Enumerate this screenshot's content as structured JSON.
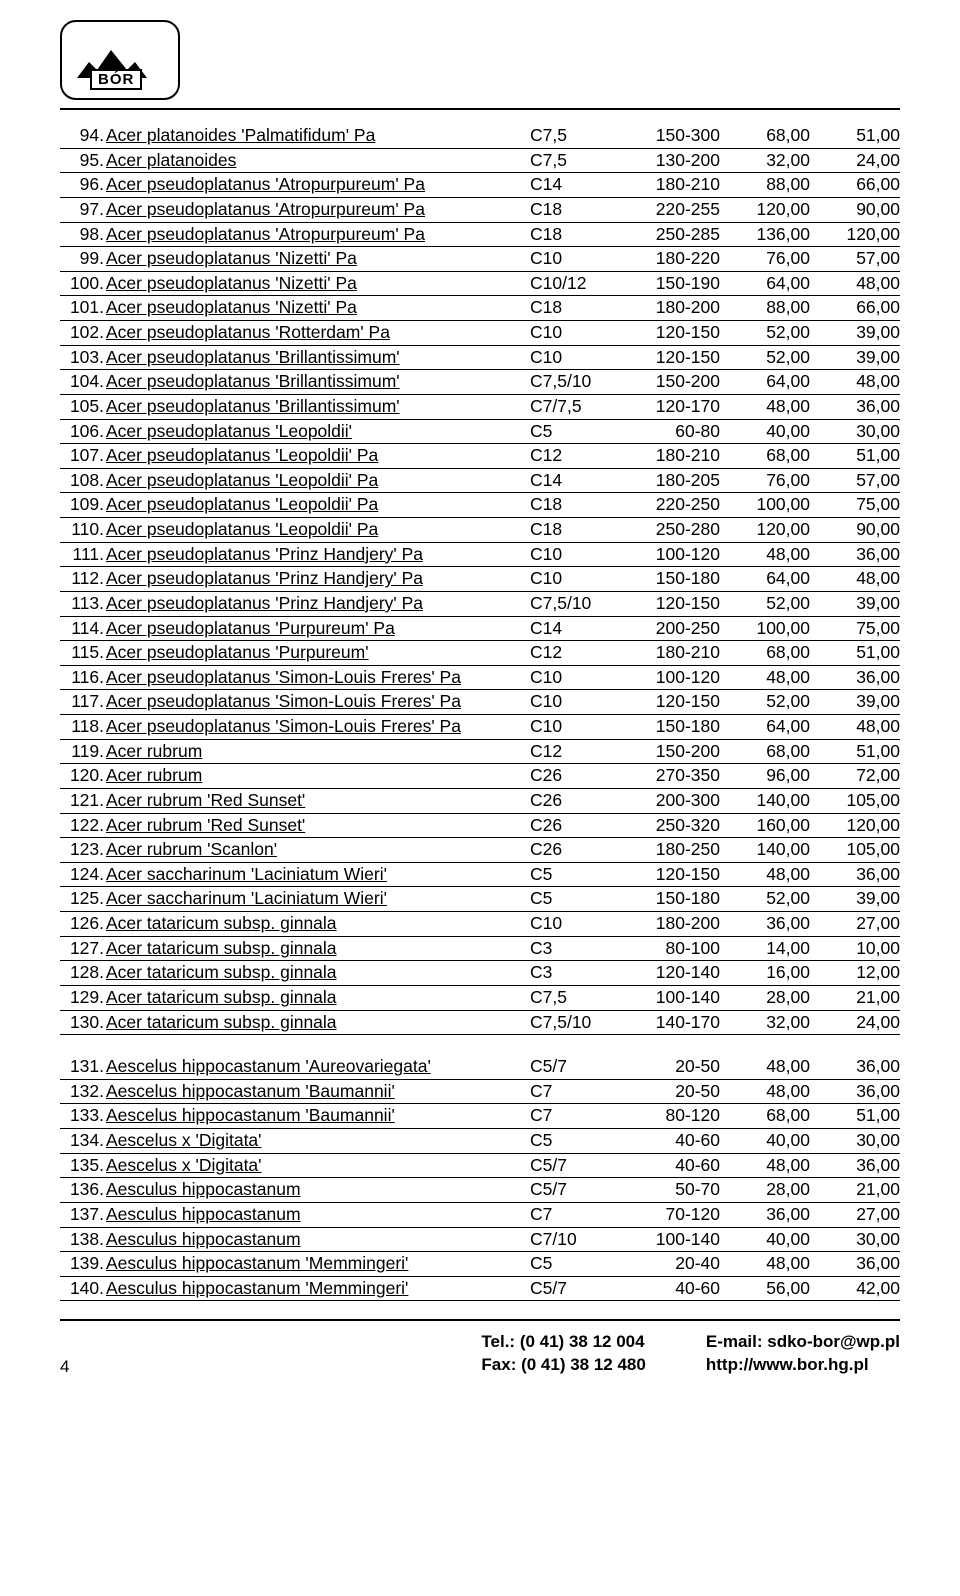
{
  "logo_text": "BÓR",
  "page_number": "4",
  "footer": {
    "tel_label": "Tel.: (0 41) 38 12 004",
    "fax_label": "Fax: (0 41) 38 12 480",
    "email_label": "E-mail: sdko-bor@wp.pl",
    "web_label": "http://www.bor.hg.pl"
  },
  "rows": [
    {
      "n": "94.",
      "name": "Acer platanoides 'Palmatifidum' Pa",
      "c2": "C7,5",
      "c3": "150-300",
      "c4": "68,00",
      "c5": "51,00"
    },
    {
      "n": "95.",
      "name": "Acer platanoides",
      "c2": "C7,5",
      "c3": "130-200",
      "c4": "32,00",
      "c5": "24,00"
    },
    {
      "n": "96.",
      "name": "Acer pseudoplatanus 'Atropurpureum' Pa",
      "c2": "C14",
      "c3": "180-210",
      "c4": "88,00",
      "c5": "66,00"
    },
    {
      "n": "97.",
      "name": "Acer pseudoplatanus 'Atropurpureum' Pa",
      "c2": "C18",
      "c3": "220-255",
      "c4": "120,00",
      "c5": "90,00"
    },
    {
      "n": "98.",
      "name": "Acer pseudoplatanus 'Atropurpureum' Pa",
      "c2": "C18",
      "c3": "250-285",
      "c4": "136,00",
      "c5": "120,00"
    },
    {
      "n": "99.",
      "name": "Acer pseudoplatanus 'Nizetti' Pa",
      "c2": "C10",
      "c3": "180-220",
      "c4": "76,00",
      "c5": "57,00"
    },
    {
      "n": "100.",
      "name": "Acer pseudoplatanus 'Nizetti' Pa",
      "c2": "C10/12",
      "c3": "150-190",
      "c4": "64,00",
      "c5": "48,00"
    },
    {
      "n": "101.",
      "name": "Acer pseudoplatanus 'Nizetti' Pa",
      "c2": "C18",
      "c3": "180-200",
      "c4": "88,00",
      "c5": "66,00"
    },
    {
      "n": "102.",
      "name": "Acer pseudoplatanus 'Rotterdam' Pa",
      "c2": "C10",
      "c3": "120-150",
      "c4": "52,00",
      "c5": "39,00"
    },
    {
      "n": "103.",
      "name": "Acer pseudoplatanus 'Brillantissimum'",
      "c2": "C10",
      "c3": "120-150",
      "c4": "52,00",
      "c5": "39,00"
    },
    {
      "n": "104.",
      "name": "Acer pseudoplatanus 'Brillantissimum'",
      "c2": "C7,5/10",
      "c3": "150-200",
      "c4": "64,00",
      "c5": "48,00"
    },
    {
      "n": "105.",
      "name": "Acer pseudoplatanus 'Brillantissimum'",
      "c2": "C7/7,5",
      "c3": "120-170",
      "c4": "48,00",
      "c5": "36,00"
    },
    {
      "n": "106.",
      "name": "Acer pseudoplatanus 'Leopoldii'",
      "c2": "C5",
      "c3": "60-80",
      "c4": "40,00",
      "c5": "30,00"
    },
    {
      "n": "107.",
      "name": "Acer pseudoplatanus 'Leopoldii' Pa",
      "c2": "C12",
      "c3": "180-210",
      "c4": "68,00",
      "c5": "51,00"
    },
    {
      "n": "108.",
      "name": "Acer pseudoplatanus 'Leopoldii' Pa",
      "c2": "C14",
      "c3": "180-205",
      "c4": "76,00",
      "c5": "57,00"
    },
    {
      "n": "109.",
      "name": "Acer pseudoplatanus 'Leopoldii' Pa",
      "c2": "C18",
      "c3": "220-250",
      "c4": "100,00",
      "c5": "75,00"
    },
    {
      "n": "110.",
      "name": "Acer pseudoplatanus 'Leopoldii' Pa",
      "c2": "C18",
      "c3": "250-280",
      "c4": "120,00",
      "c5": "90,00"
    },
    {
      "n": "111.",
      "name": "Acer pseudoplatanus 'Prinz Handjery' Pa",
      "c2": "C10",
      "c3": "100-120",
      "c4": "48,00",
      "c5": "36,00"
    },
    {
      "n": "112.",
      "name": "Acer pseudoplatanus 'Prinz Handjery' Pa",
      "c2": "C10",
      "c3": "150-180",
      "c4": "64,00",
      "c5": "48,00"
    },
    {
      "n": "113.",
      "name": "Acer pseudoplatanus 'Prinz Handjery' Pa",
      "c2": "C7,5/10",
      "c3": "120-150",
      "c4": "52,00",
      "c5": "39,00"
    },
    {
      "n": "114.",
      "name": "Acer pseudoplatanus 'Purpureum' Pa",
      "c2": "C14",
      "c3": "200-250",
      "c4": "100,00",
      "c5": "75,00"
    },
    {
      "n": "115.",
      "name": "Acer pseudoplatanus 'Purpureum'",
      "c2": "C12",
      "c3": "180-210",
      "c4": "68,00",
      "c5": "51,00"
    },
    {
      "n": "116.",
      "name": "Acer pseudoplatanus 'Simon-Louis Freres' Pa",
      "c2": "C10",
      "c3": "100-120",
      "c4": "48,00",
      "c5": "36,00"
    },
    {
      "n": "117.",
      "name": "Acer pseudoplatanus 'Simon-Louis Freres' Pa",
      "c2": "C10",
      "c3": "120-150",
      "c4": "52,00",
      "c5": "39,00"
    },
    {
      "n": "118.",
      "name": "Acer pseudoplatanus 'Simon-Louis Freres' Pa",
      "c2": "C10",
      "c3": "150-180",
      "c4": "64,00",
      "c5": "48,00"
    },
    {
      "n": "119.",
      "name": "Acer rubrum",
      "c2": "C12",
      "c3": "150-200",
      "c4": "68,00",
      "c5": "51,00"
    },
    {
      "n": "120.",
      "name": "Acer rubrum",
      "c2": "C26",
      "c3": "270-350",
      "c4": "96,00",
      "c5": "72,00"
    },
    {
      "n": "121.",
      "name": "Acer rubrum 'Red Sunset'",
      "c2": "C26",
      "c3": "200-300",
      "c4": "140,00",
      "c5": "105,00"
    },
    {
      "n": "122.",
      "name": "Acer rubrum 'Red Sunset'",
      "c2": "C26",
      "c3": "250-320",
      "c4": "160,00",
      "c5": "120,00"
    },
    {
      "n": "123.",
      "name": "Acer rubrum 'Scanlon'",
      "c2": "C26",
      "c3": "180-250",
      "c4": "140,00",
      "c5": "105,00"
    },
    {
      "n": "124.",
      "name": "Acer saccharinum 'Laciniatum Wieri'",
      "c2": "C5",
      "c3": "120-150",
      "c4": "48,00",
      "c5": "36,00"
    },
    {
      "n": "125.",
      "name": "Acer saccharinum 'Laciniatum Wieri'",
      "c2": "C5",
      "c3": "150-180",
      "c4": "52,00",
      "c5": "39,00"
    },
    {
      "n": "126.",
      "name": "Acer tataricum subsp. ginnala",
      "c2": "C10",
      "c3": "180-200",
      "c4": "36,00",
      "c5": "27,00"
    },
    {
      "n": "127.",
      "name": "Acer tataricum subsp. ginnala",
      "c2": "C3",
      "c3": "80-100",
      "c4": "14,00",
      "c5": "10,00"
    },
    {
      "n": "128.",
      "name": "Acer tataricum subsp. ginnala",
      "c2": "C3",
      "c3": "120-140",
      "c4": "16,00",
      "c5": "12,00"
    },
    {
      "n": "129.",
      "name": "Acer tataricum subsp. ginnala",
      "c2": "C7,5",
      "c3": "100-140",
      "c4": "28,00",
      "c5": "21,00"
    },
    {
      "n": "130.",
      "name": "Acer tataricum subsp. ginnala",
      "c2": "C7,5/10",
      "c3": "140-170",
      "c4": "32,00",
      "c5": "24,00"
    }
  ],
  "rows2": [
    {
      "n": "131.",
      "name": "Aescelus hippocastanum 'Aureovariegata'",
      "c2": "C5/7",
      "c3": "20-50",
      "c4": "48,00",
      "c5": "36,00"
    },
    {
      "n": "132.",
      "name": "Aescelus hippocastanum 'Baumannii'",
      "c2": "C7",
      "c3": "20-50",
      "c4": "48,00",
      "c5": "36,00"
    },
    {
      "n": "133.",
      "name": "Aescelus hippocastanum 'Baumannii'",
      "c2": "C7",
      "c3": "80-120",
      "c4": "68,00",
      "c5": "51,00"
    },
    {
      "n": "134.",
      "name": "Aescelus x 'Digitata'",
      "c2": "C5",
      "c3": "40-60",
      "c4": "40,00",
      "c5": "30,00"
    },
    {
      "n": "135.",
      "name": "Aescelus x 'Digitata'",
      "c2": "C5/7",
      "c3": "40-60",
      "c4": "48,00",
      "c5": "36,00"
    },
    {
      "n": "136.",
      "name": "Aesculus hippocastanum",
      "c2": "C5/7",
      "c3": "50-70",
      "c4": "28,00",
      "c5": "21,00"
    },
    {
      "n": "137.",
      "name": "Aesculus hippocastanum",
      "c2": "C7",
      "c3": "70-120",
      "c4": "36,00",
      "c5": "27,00"
    },
    {
      "n": "138.",
      "name": "Aesculus hippocastanum",
      "c2": "C7/10",
      "c3": "100-140",
      "c4": "40,00",
      "c5": "30,00"
    },
    {
      "n": "139.",
      "name": "Aesculus hippocastanum 'Memmingeri'",
      "c2": "C5",
      "c3": "20-40",
      "c4": "48,00",
      "c5": "36,00"
    },
    {
      "n": "140.",
      "name": "Aesculus hippocastanum 'Memmingeri'",
      "c2": "C5/7",
      "c3": "40-60",
      "c4": "56,00",
      "c5": "42,00"
    }
  ]
}
